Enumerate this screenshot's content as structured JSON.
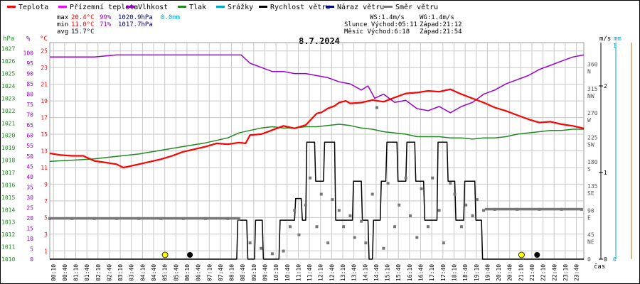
{
  "legend": [
    {
      "label": "Teplota",
      "color": "#ff0000"
    },
    {
      "label": "Přízemní teplota",
      "color": "#ff00ff"
    },
    {
      "label": "Vlhkost",
      "color": "#9900cc"
    },
    {
      "label": "Tlak",
      "color": "#228822"
    },
    {
      "label": "Srážky",
      "color": "#00aacc"
    },
    {
      "label": "Rychlost větru",
      "color": "#000000"
    },
    {
      "label": "Náraz větru",
      "color": "#000088"
    },
    {
      "label": "Směr větru",
      "color": "#777777"
    }
  ],
  "stats": {
    "max_label": "max",
    "max_temp": "20.4°C",
    "max_hum": "99%",
    "max_press": "1020.9hPa",
    "max_rain": "0.0mm",
    "min_label": "min",
    "min_temp": "11.0°C",
    "min_hum": "71%",
    "min_press": "1017.7hPa",
    "avg_label": "avg",
    "avg_temp": "15.7°C"
  },
  "info": {
    "ws": "WS:1.4m/s",
    "wg": "WG:1.4m/s",
    "sun": "Slunce Východ:05:11",
    "sun_set": "Západ:21:12",
    "moon": "Měsíc  Východ:6:18",
    "moon_set": "Západ:21:54"
  },
  "unit_labels": {
    "hpa": "hPa",
    "pct": "%",
    "degc": "°C",
    "ms": "m/s",
    "mm": "mm",
    "cas": "čas"
  },
  "colors": {
    "temp": "#ff0000",
    "hum": "#9900cc",
    "press": "#228822",
    "wind": "#000000",
    "dir": "#777777",
    "grid": "#c8c8c8",
    "sun": "#ffff00",
    "blue_axis": "#00aacc",
    "tan_axis": "#c8a064"
  },
  "chart_data": {
    "type": "line",
    "title": "8.7.2024",
    "x_unit": "time of day (hours)",
    "xlim": [
      0,
      24
    ],
    "xtick_labels": [
      "00:10",
      "00:40",
      "01:10",
      "01:40",
      "02:10",
      "02:40",
      "03:10",
      "03:40",
      "04:10",
      "04:40",
      "05:10",
      "05:40",
      "06:10",
      "06:40",
      "07:10",
      "07:40",
      "08:10",
      "08:40",
      "09:10",
      "09:40",
      "10:10",
      "10:40",
      "11:10",
      "11:40",
      "12:10",
      "12:40",
      "13:10",
      "13:40",
      "14:10",
      "14:40",
      "15:10",
      "15:40",
      "16:10",
      "16:40",
      "17:10",
      "17:40",
      "18:10",
      "18:40",
      "19:10",
      "19:40",
      "20:10",
      "20:40",
      "21:10",
      "21:40",
      "22:10",
      "22:40",
      "23:10",
      "23:40"
    ],
    "axes": {
      "pressure_hpa": {
        "min": 1010,
        "max": 1027.5,
        "ticks": [
          1010,
          1011,
          1012,
          1013,
          1014,
          1015,
          1016,
          1017,
          1018,
          1019,
          1020,
          1021,
          1022,
          1023,
          1024,
          1025,
          1026,
          1027
        ]
      },
      "humidity_pct": {
        "min": 0,
        "max": 105,
        "ticks": [
          0,
          5,
          10,
          15,
          20,
          25,
          30,
          35,
          40,
          45,
          50,
          55,
          60,
          65,
          70,
          75,
          80,
          85,
          90,
          95,
          100
        ]
      },
      "temperature_c": {
        "min": 0,
        "max": 26,
        "ticks": [
          1,
          3,
          5,
          7,
          9,
          11,
          13,
          15,
          17,
          19,
          21,
          23,
          25
        ]
      },
      "wind_dir": {
        "ticks": [
          [
            "0",
            0
          ],
          [
            "45",
            "NE"
          ],
          [
            "90",
            "E"
          ],
          [
            "135",
            "SE"
          ],
          [
            "180",
            "S"
          ],
          [
            "225",
            "SW"
          ],
          [
            "270",
            "W"
          ],
          [
            "315",
            "NW"
          ],
          [
            "360",
            "N"
          ]
        ]
      },
      "wind_ms": {
        "ticks": [
          0,
          1,
          2
        ]
      },
      "rain_mm": {
        "ticks": [
          0,
          1
        ]
      }
    },
    "series": [
      {
        "name": "Teplota",
        "unit": "°C",
        "x": [
          0,
          0.5,
          1,
          1.5,
          2,
          2.5,
          3,
          3.3,
          3.5,
          4,
          4.5,
          5,
          5.5,
          6,
          6.5,
          7,
          7.5,
          8,
          8.5,
          8.8,
          9,
          9.5,
          10,
          10.5,
          11,
          11.5,
          12,
          12.2,
          12.5,
          12.8,
          13,
          13.3,
          13.5,
          14,
          14.5,
          15,
          15.5,
          16,
          16.5,
          17,
          17.5,
          18,
          18.5,
          19,
          19.5,
          20,
          20.5,
          21,
          21.5,
          22,
          22.5,
          23,
          23.5,
          24
        ],
        "values": [
          12.7,
          12.5,
          12.4,
          12.4,
          11.8,
          11.6,
          11.4,
          11.0,
          11.1,
          11.4,
          11.7,
          12.0,
          12.4,
          12.9,
          13.2,
          13.5,
          13.9,
          13.8,
          14.0,
          13.9,
          14.9,
          15.0,
          15.5,
          16.0,
          15.7,
          16.1,
          17.5,
          17.6,
          18.1,
          18.4,
          18.8,
          19.0,
          18.7,
          18.8,
          19.1,
          18.9,
          19.4,
          19.9,
          20.0,
          20.2,
          20.1,
          20.4,
          19.8,
          19.3,
          18.8,
          18.2,
          17.8,
          17.3,
          16.8,
          16.4,
          16.5,
          16.2,
          16.0,
          15.7
        ]
      },
      {
        "name": "Vlhkost",
        "unit": "%",
        "x": [
          0,
          1,
          2,
          3,
          4,
          5,
          6,
          7,
          8,
          8.6,
          9,
          9.5,
          10,
          10.5,
          11,
          11.5,
          12,
          12.5,
          13,
          13.5,
          14,
          14.3,
          14.6,
          15,
          15.5,
          16,
          16.5,
          17,
          17.5,
          18,
          18.5,
          19,
          19.5,
          20,
          20.5,
          21,
          21.5,
          22,
          22.5,
          23,
          23.5,
          24
        ],
        "values": [
          98,
          98,
          98,
          99,
          99,
          99,
          99,
          99,
          99,
          99,
          95,
          93,
          91,
          91,
          90,
          90,
          89,
          88,
          86,
          85,
          82,
          84,
          78,
          80,
          76,
          77,
          73,
          72,
          74,
          71,
          74,
          76,
          80,
          82,
          85,
          87,
          89,
          92,
          94,
          96,
          98,
          99
        ]
      },
      {
        "name": "Tlak",
        "unit": "hPa",
        "x": [
          0,
          1,
          2,
          3,
          4,
          5,
          6,
          7,
          8,
          8.5,
          9,
          9.5,
          10,
          10.5,
          11,
          11.5,
          12,
          12.5,
          13,
          13.5,
          14,
          14.5,
          15,
          15.5,
          16,
          16.5,
          17,
          17.5,
          18,
          18.5,
          19,
          19.5,
          20,
          20.5,
          21,
          21.5,
          22,
          22.5,
          23,
          23.5,
          24
        ],
        "values": [
          1017.9,
          1018.0,
          1018.1,
          1018.3,
          1018.5,
          1018.8,
          1019.1,
          1019.4,
          1019.8,
          1020.2,
          1020.4,
          1020.6,
          1020.7,
          1020.6,
          1020.6,
          1020.7,
          1020.7,
          1020.8,
          1020.9,
          1020.8,
          1020.6,
          1020.5,
          1020.3,
          1020.2,
          1020.1,
          1019.9,
          1019.9,
          1019.9,
          1019.8,
          1019.8,
          1019.7,
          1019.8,
          1019.8,
          1019.9,
          1020.1,
          1020.2,
          1020.3,
          1020.4,
          1020.4,
          1020.5,
          1020.5
        ]
      },
      {
        "name": "Rychlost větru",
        "unit": "m/s",
        "x": [
          0,
          8.4,
          8.45,
          8.85,
          8.9,
          9.2,
          9.25,
          9.55,
          9.6,
          10.3,
          10.35,
          11.0,
          11.05,
          11.3,
          11.35,
          11.5,
          11.55,
          11.9,
          11.95,
          12.3,
          12.35,
          12.8,
          12.85,
          13.6,
          13.65,
          14.0,
          14.05,
          14.3,
          14.35,
          14.5,
          14.55,
          14.85,
          14.9,
          15.1,
          15.15,
          15.6,
          15.65,
          16.0,
          16.05,
          16.4,
          16.45,
          16.8,
          16.85,
          17.4,
          17.45,
          17.85,
          17.9,
          18.2,
          18.25,
          18.6,
          18.65,
          19.1,
          19.15,
          19.4,
          19.45,
          24
        ],
        "values": [
          0,
          0,
          0.45,
          0.45,
          0,
          0,
          0.45,
          0.45,
          0,
          0,
          0.45,
          0.45,
          0.7,
          0.7,
          0.45,
          0.45,
          1.35,
          1.35,
          0.9,
          0.9,
          1.35,
          1.35,
          0.45,
          0.45,
          0.9,
          0.9,
          0.45,
          0.45,
          0,
          0,
          0.45,
          0.45,
          0.9,
          0.9,
          1.35,
          1.35,
          0.9,
          0.9,
          1.35,
          1.35,
          0.9,
          0.9,
          0.45,
          0.45,
          1.35,
          1.35,
          0.9,
          0.9,
          0.45,
          0.45,
          0.9,
          0.9,
          0.45,
          0.45,
          0,
          0
        ]
      },
      {
        "name": "Směr větru",
        "unit": "°",
        "x": [
          0,
          1,
          2,
          3,
          4,
          5,
          6,
          7,
          8,
          8.5,
          9,
          9.5,
          10,
          10.5,
          10.8,
          11,
          11.2,
          11.5,
          11.7,
          12,
          12.2,
          12.5,
          12.7,
          13,
          13.2,
          13.5,
          13.7,
          14,
          14.2,
          14.5,
          14.7,
          15,
          15.2,
          15.5,
          15.7,
          16,
          16.2,
          16.5,
          16.7,
          17,
          17.2,
          17.5,
          17.7,
          18,
          18.2,
          18.5,
          18.7,
          19,
          19.2,
          19.5,
          20,
          21,
          22,
          23,
          23.9
        ],
        "values": [
          75,
          75,
          75,
          75,
          75,
          75,
          75,
          75,
          75,
          74,
          30,
          20,
          10,
          15,
          60,
          90,
          45,
          100,
          150,
          60,
          120,
          30,
          110,
          90,
          60,
          80,
          40,
          70,
          30,
          120,
          280,
          20,
          140,
          60,
          100,
          150,
          80,
          40,
          130,
          60,
          150,
          90,
          30,
          140,
          120,
          60,
          100,
          80,
          110,
          90,
          92,
          92,
          92,
          92,
          92
        ]
      }
    ],
    "markers": [
      {
        "name": "Slunce Východ",
        "x": 5.18
      },
      {
        "name": "Měsíc Východ",
        "x": 6.3
      },
      {
        "name": "Slunce Západ",
        "x": 21.2
      },
      {
        "name": "Měsíc Západ",
        "x": 21.9
      }
    ]
  }
}
